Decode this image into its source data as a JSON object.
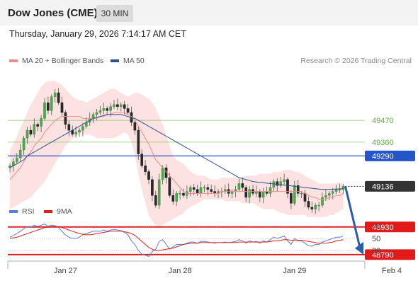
{
  "header": {
    "title": "Dow Jones (CME)",
    "timeframe": "30 MIN"
  },
  "timestamp": "Thursday, January 29, 2026 7:14:17 AM CET",
  "credit": "Research © 2026 Trading Central",
  "legend": {
    "ma20": {
      "label": "MA 20 + Bollinger Bands",
      "color": "#f08a8a"
    },
    "ma50": {
      "label": "MA 50",
      "color": "#2b4f91"
    }
  },
  "rsi_legend": {
    "rsi": {
      "label": "RSI",
      "color": "#5b7fd6"
    },
    "ma9": {
      "label": "9MA",
      "color": "#e02020"
    }
  },
  "chart_data": {
    "type": "candlestick",
    "y_range": [
      48750,
      49700
    ],
    "levels": [
      {
        "value": 49470,
        "label": "49470",
        "kind": "resistance",
        "color": "#8ac06a"
      },
      {
        "value": 49360,
        "label": "49360",
        "kind": "resistance",
        "color": "#8ac06a"
      },
      {
        "value": 49290,
        "label": "49290",
        "kind": "pivot",
        "color": "#2456c9"
      },
      {
        "value": 48930,
        "label": "48930",
        "kind": "support",
        "color": "#e21a1a"
      },
      {
        "value": 48790,
        "label": "48790",
        "kind": "support",
        "color": "#e21a1a"
      }
    ],
    "current": {
      "value": 49136,
      "label": "49136"
    },
    "forecast": {
      "from": 49136,
      "to": 48790
    },
    "close": [
      49240,
      49260,
      49280,
      49320,
      49380,
      49420,
      49400,
      49450,
      49440,
      49480,
      49560,
      49520,
      49590,
      49610,
      49560,
      49510,
      49450,
      49420,
      49400,
      49410,
      49420,
      49440,
      49460,
      49480,
      49500,
      49510,
      49520,
      49530,
      49520,
      49540,
      49550,
      49540,
      49550,
      49530,
      49510,
      49460,
      49420,
      49300,
      49240,
      49210,
      49170,
      49090,
      49040,
      49170,
      49230,
      49180,
      49090,
      49060,
      49100,
      49100,
      49090,
      49110,
      49130,
      49120,
      49100,
      49130,
      49130,
      49120,
      49110,
      49100,
      49110,
      49110,
      49120,
      49100,
      49110,
      49120,
      49150,
      49130,
      49080,
      49120,
      49100,
      49110,
      49080,
      49110,
      49100,
      49130,
      49160,
      49140,
      49160,
      49170,
      49100,
      49050,
      49140,
      49100,
      49100,
      49060,
      49030,
      49020,
      49040,
      49040,
      49080,
      49090,
      49100,
      49110,
      49120,
      49120,
      49136
    ],
    "ma20": [
      49170,
      49190,
      49210,
      49230,
      49260,
      49290,
      49310,
      49340,
      49360,
      49380,
      49410,
      49430,
      49450,
      49470,
      49480,
      49490,
      49490,
      49490,
      49490,
      49490,
      49490,
      49480,
      49480,
      49480,
      49480,
      49480,
      49490,
      49490,
      49500,
      49500,
      49510,
      49510,
      49510,
      49510,
      49500,
      49490,
      49470,
      49440,
      49410,
      49380,
      49350,
      49310,
      49270,
      49250,
      49230,
      49210,
      49190,
      49170,
      49150,
      49130,
      49110,
      49100,
      49100,
      49100,
      49100,
      49100,
      49100,
      49100,
      49100,
      49100,
      49100,
      49110,
      49110,
      49110,
      49110,
      49110,
      49110,
      49110,
      49110,
      49110,
      49110,
      49110,
      49110,
      49110,
      49110,
      49110,
      49110,
      49110,
      49110,
      49110,
      49110,
      49110,
      49110,
      49110,
      49110,
      49100,
      49090,
      49080,
      49080,
      49070,
      49070,
      49070,
      49080,
      49080,
      49090,
      49090,
      49100
    ],
    "bb_upper": [
      49320,
      49350,
      49390,
      49430,
      49470,
      49510,
      49550,
      49580,
      49610,
      49640,
      49660,
      49670,
      49670,
      49670,
      49660,
      49650,
      49630,
      49610,
      49590,
      49580,
      49570,
      49570,
      49560,
      49570,
      49580,
      49590,
      49600,
      49610,
      49620,
      49630,
      49630,
      49620,
      49610,
      49600,
      49590,
      49600,
      49610,
      49610,
      49600,
      49590,
      49580,
      49560,
      49530,
      49490,
      49450,
      49400,
      49340,
      49290,
      49270,
      49260,
      49250,
      49230,
      49210,
      49200,
      49190,
      49190,
      49190,
      49180,
      49170,
      49170,
      49170,
      49180,
      49180,
      49180,
      49180,
      49180,
      49180,
      49180,
      49190,
      49190,
      49190,
      49190,
      49200,
      49200,
      49200,
      49200,
      49210,
      49210,
      49210,
      49220,
      49220,
      49220,
      49210,
      49210,
      49200,
      49190,
      49180,
      49170,
      49160,
      49150,
      49150,
      49150,
      49150,
      49150,
      49150,
      49150,
      49150
    ],
    "bb_lower": [
      49020,
      49030,
      49040,
      49050,
      49060,
      49070,
      49080,
      49100,
      49120,
      49140,
      49160,
      49190,
      49220,
      49250,
      49280,
      49310,
      49340,
      49360,
      49380,
      49390,
      49400,
      49400,
      49400,
      49400,
      49390,
      49380,
      49380,
      49380,
      49380,
      49380,
      49380,
      49390,
      49400,
      49410,
      49400,
      49360,
      49290,
      49200,
      49120,
      49050,
      48990,
      48960,
      48940,
      48930,
      48940,
      48950,
      48960,
      48970,
      48980,
      48990,
      49000,
      49020,
      49030,
      49040,
      49050,
      49060,
      49070,
      49070,
      49070,
      49070,
      49070,
      49070,
      49060,
      49060,
      49060,
      49060,
      49060,
      49050,
      49050,
      49050,
      49050,
      49040,
      49030,
      49020,
      49020,
      49020,
      49020,
      49010,
      49000,
      49000,
      48990,
      48990,
      48990,
      48990,
      48990,
      48990,
      48980,
      48980,
      48980,
      48980,
      48980,
      48980,
      48990,
      48990,
      49000,
      49010,
      49020
    ],
    "ma50": [
      49230,
      49240,
      49250,
      49260,
      49270,
      49290,
      49300,
      49310,
      49320,
      49330,
      49340,
      49350,
      49360,
      49370,
      49380,
      49390,
      49400,
      49410,
      49420,
      49430,
      49440,
      49450,
      49460,
      49470,
      49480,
      49485,
      49490,
      49495,
      49500,
      49500,
      49500,
      49500,
      49500,
      49495,
      49490,
      49485,
      49480,
      49470,
      49460,
      49450,
      49440,
      49430,
      49420,
      49410,
      49400,
      49390,
      49380,
      49370,
      49360,
      49350,
      49340,
      49330,
      49320,
      49310,
      49300,
      49290,
      49280,
      49270,
      49260,
      49250,
      49240,
      49230,
      49220,
      49210,
      49200,
      49190,
      49180,
      49175,
      49170,
      49165,
      49160,
      49158,
      49156,
      49154,
      49152,
      49150,
      49148,
      49146,
      49144,
      49142,
      49140,
      49138,
      49136,
      49134,
      49132,
      49130,
      49128,
      49126,
      49124,
      49122,
      49120,
      49120,
      49120,
      49121,
      49122,
      49123,
      49124
    ],
    "rsi": {
      "levels": [
        70,
        50,
        30
      ],
      "rsi": [
        52,
        55,
        58,
        62,
        66,
        70,
        68,
        72,
        70,
        72,
        74,
        70,
        72,
        71,
        68,
        62,
        56,
        52,
        50,
        50,
        52,
        56,
        58,
        60,
        62,
        62,
        62,
        64,
        62,
        64,
        65,
        64,
        63,
        60,
        56,
        46,
        40,
        30,
        24,
        22,
        20,
        28,
        32,
        45,
        48,
        40,
        32,
        36,
        40,
        40,
        40,
        42,
        44,
        44,
        42,
        45,
        45,
        44,
        43,
        42,
        43,
        43,
        44,
        43,
        44,
        45,
        48,
        46,
        42,
        46,
        44,
        45,
        42,
        46,
        44,
        48,
        52,
        50,
        52,
        54,
        46,
        40,
        50,
        46,
        46,
        42,
        38,
        37,
        40,
        40,
        44,
        46,
        48,
        50,
        52,
        52,
        54
      ],
      "ma9": [
        50,
        51,
        52,
        54,
        56,
        58,
        60,
        62,
        64,
        66,
        68,
        69,
        70,
        70,
        70,
        68,
        66,
        64,
        62,
        60,
        58,
        57,
        56,
        56,
        57,
        58,
        59,
        60,
        61,
        62,
        62,
        62,
        62,
        61,
        60,
        58,
        55,
        50,
        45,
        40,
        35,
        32,
        30,
        30,
        31,
        32,
        33,
        34,
        36,
        38,
        40,
        41,
        42,
        42,
        42,
        43,
        43,
        43,
        43,
        43,
        43,
        43,
        43,
        43,
        43,
        43,
        44,
        44,
        44,
        44,
        44,
        44,
        44,
        44,
        44,
        45,
        46,
        46,
        47,
        48,
        48,
        47,
        47,
        47,
        47,
        46,
        45,
        44,
        43,
        42,
        42,
        42,
        43,
        44,
        46,
        47,
        48
      ]
    },
    "x_ticks": [
      {
        "label": "Jan 27",
        "index": 16
      },
      {
        "label": "Jan 28",
        "index": 49
      },
      {
        "label": "Jan 29",
        "index": 82
      },
      {
        "label": "Feb 4",
        "index": 110
      }
    ]
  }
}
